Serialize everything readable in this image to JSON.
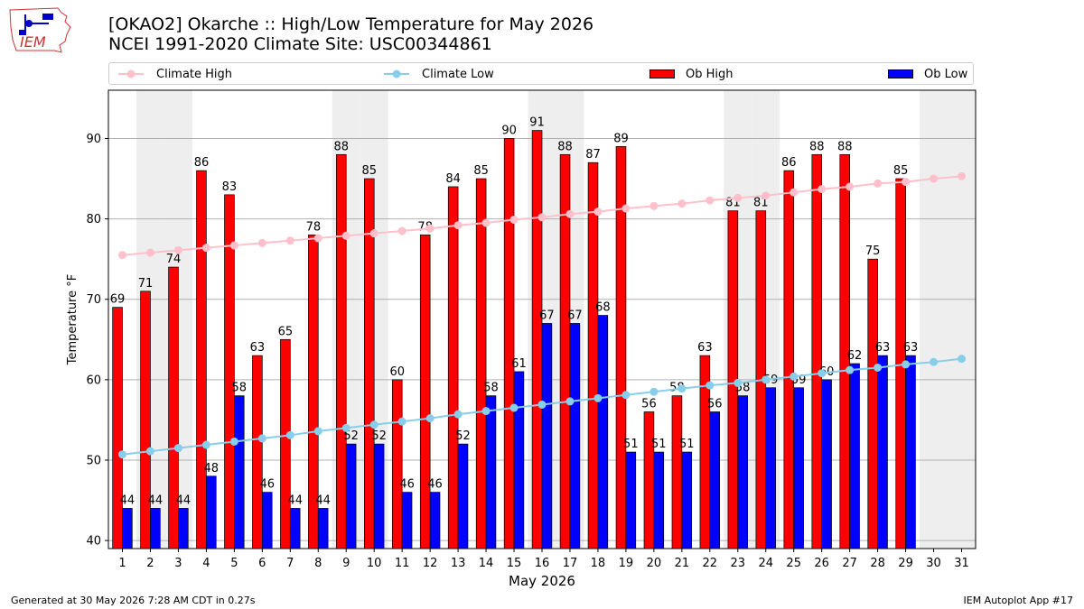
{
  "header": {
    "title_line1": "[OKAO2] Okarche :: High/Low Temperature for May 2026",
    "title_line2": "NCEI 1991-2020 Climate Site: USC00344861",
    "logo_text": "IEM"
  },
  "legend": {
    "climate_high": "Climate High",
    "climate_low": "Climate Low",
    "ob_high": "Ob High",
    "ob_low": "Ob Low"
  },
  "colors": {
    "climate_high": "#ffc0cb",
    "climate_low": "#87ceeb",
    "ob_high": "#ff0000",
    "ob_low": "#0000ff",
    "weekend_shade": "#eeeeee",
    "grid": "#b0b0b0"
  },
  "footer": {
    "generated": "Generated at 30 May 2026 7:28 AM CDT in 0.27s",
    "app": "IEM Autoplot App #17"
  },
  "chart_data": {
    "type": "bar",
    "xlabel": "May 2026",
    "ylabel": "Temperature °F",
    "ylim": [
      39,
      96
    ],
    "xlim": [
      0.5,
      31.5
    ],
    "yticks": [
      40,
      50,
      60,
      70,
      80,
      90
    ],
    "grid": "y",
    "legend_position": "top",
    "days": [
      1,
      2,
      3,
      4,
      5,
      6,
      7,
      8,
      9,
      10,
      11,
      12,
      13,
      14,
      15,
      16,
      17,
      18,
      19,
      20,
      21,
      22,
      23,
      24,
      25,
      26,
      27,
      28,
      29,
      30,
      31
    ],
    "shaded_days": [
      2,
      3,
      9,
      10,
      16,
      17,
      23,
      24,
      30,
      31
    ],
    "series": [
      {
        "name": "Ob High",
        "kind": "bar",
        "values": [
          69,
          71,
          74,
          86,
          83,
          63,
          65,
          78,
          88,
          85,
          60,
          78,
          84,
          85,
          90,
          91,
          88,
          87,
          89,
          56,
          58,
          63,
          81,
          81,
          86,
          88,
          88,
          75,
          85,
          null,
          null
        ]
      },
      {
        "name": "Ob Low",
        "kind": "bar",
        "values": [
          44,
          44,
          44,
          48,
          58,
          46,
          44,
          44,
          52,
          52,
          46,
          46,
          52,
          58,
          61,
          67,
          67,
          68,
          51,
          51,
          51,
          56,
          58,
          59,
          59,
          60,
          62,
          63,
          63,
          null,
          null
        ]
      },
      {
        "name": "Climate High",
        "kind": "line",
        "values": [
          75.5,
          75.8,
          76.1,
          76.4,
          76.7,
          77.0,
          77.3,
          77.6,
          77.9,
          78.2,
          78.5,
          78.8,
          79.2,
          79.5,
          79.9,
          80.2,
          80.6,
          80.9,
          81.3,
          81.6,
          81.9,
          82.3,
          82.6,
          82.9,
          83.3,
          83.7,
          84.0,
          84.4,
          84.6,
          85.0,
          85.3
        ]
      },
      {
        "name": "Climate Low",
        "kind": "line",
        "values": [
          50.7,
          51.1,
          51.5,
          51.9,
          52.3,
          52.7,
          53.1,
          53.6,
          54.0,
          54.4,
          54.8,
          55.2,
          55.7,
          56.1,
          56.5,
          56.9,
          57.3,
          57.7,
          58.1,
          58.5,
          58.9,
          59.3,
          59.6,
          60.0,
          60.4,
          60.8,
          61.2,
          61.5,
          61.9,
          62.2,
          62.6
        ]
      }
    ]
  }
}
